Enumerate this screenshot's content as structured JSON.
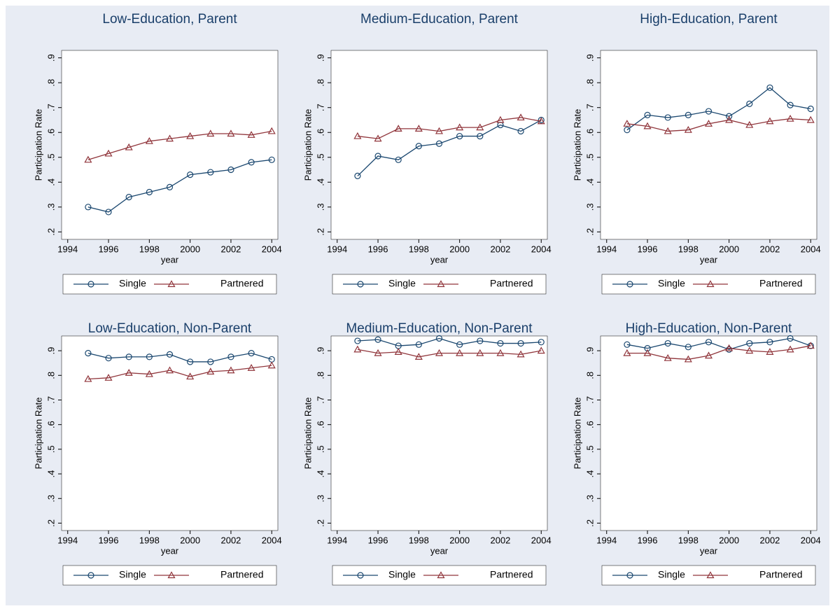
{
  "chart_data": [
    {
      "type": "line",
      "title": "Low-Education, Parent",
      "xlabel": "year",
      "ylabel": "Participation Rate",
      "x": [
        1995,
        1996,
        1997,
        1998,
        1999,
        2000,
        2001,
        2002,
        2003,
        2004
      ],
      "series": [
        {
          "name": "Single",
          "color": "#1a476f",
          "marker": "circle",
          "values": [
            0.3,
            0.28,
            0.34,
            0.36,
            0.38,
            0.43,
            0.44,
            0.45,
            0.48,
            0.49
          ]
        },
        {
          "name": "Partnered",
          "color": "#90353b",
          "marker": "triangle",
          "values": [
            0.49,
            0.515,
            0.54,
            0.565,
            0.575,
            0.585,
            0.595,
            0.595,
            0.59,
            0.605
          ]
        }
      ],
      "xlim": [
        1993.7,
        2004.3
      ],
      "xticks": [
        1994,
        1996,
        1998,
        2000,
        2002,
        2004
      ],
      "ylim": [
        0.17,
        0.93
      ],
      "yticks": [
        {
          "value": 0.2,
          "label": ".2"
        },
        {
          "value": 0.3,
          "label": ".3"
        },
        {
          "value": 0.4,
          "label": ".4"
        },
        {
          "value": 0.5,
          "label": ".5"
        },
        {
          "value": 0.6,
          "label": ".6"
        },
        {
          "value": 0.7,
          "label": ".7"
        },
        {
          "value": 0.8,
          "label": ".8"
        },
        {
          "value": 0.9,
          "label": ".9"
        }
      ]
    },
    {
      "type": "line",
      "title": "Medium-Education, Parent",
      "xlabel": "year",
      "ylabel": "Participation Rate",
      "x": [
        1995,
        1996,
        1997,
        1998,
        1999,
        2000,
        2001,
        2002,
        2003,
        2004
      ],
      "series": [
        {
          "name": "Single",
          "color": "#1a476f",
          "marker": "circle",
          "values": [
            0.425,
            0.505,
            0.49,
            0.545,
            0.555,
            0.585,
            0.585,
            0.63,
            0.605,
            0.65
          ]
        },
        {
          "name": "Partnered",
          "color": "#90353b",
          "marker": "triangle",
          "values": [
            0.585,
            0.575,
            0.615,
            0.615,
            0.605,
            0.62,
            0.62,
            0.65,
            0.66,
            0.645
          ]
        }
      ],
      "xlim": [
        1993.7,
        2004.3
      ],
      "xticks": [
        1994,
        1996,
        1998,
        2000,
        2002,
        2004
      ],
      "ylim": [
        0.17,
        0.93
      ],
      "yticks": [
        {
          "value": 0.2,
          "label": ".2"
        },
        {
          "value": 0.3,
          "label": ".3"
        },
        {
          "value": 0.4,
          "label": ".4"
        },
        {
          "value": 0.5,
          "label": ".5"
        },
        {
          "value": 0.6,
          "label": ".6"
        },
        {
          "value": 0.7,
          "label": ".7"
        },
        {
          "value": 0.8,
          "label": ".8"
        },
        {
          "value": 0.9,
          "label": ".9"
        }
      ]
    },
    {
      "type": "line",
      "title": "High-Education, Parent",
      "xlabel": "year",
      "ylabel": "Participation Rate",
      "x": [
        1995,
        1996,
        1997,
        1998,
        1999,
        2000,
        2001,
        2002,
        2003,
        2004
      ],
      "series": [
        {
          "name": "Single",
          "color": "#1a476f",
          "marker": "circle",
          "values": [
            0.61,
            0.67,
            0.66,
            0.67,
            0.685,
            0.665,
            0.715,
            0.78,
            0.71,
            0.695
          ]
        },
        {
          "name": "Partnered",
          "color": "#90353b",
          "marker": "triangle",
          "values": [
            0.635,
            0.625,
            0.605,
            0.61,
            0.635,
            0.65,
            0.63,
            0.645,
            0.655,
            0.65
          ]
        }
      ],
      "xlim": [
        1993.7,
        2004.3
      ],
      "xticks": [
        1994,
        1996,
        1998,
        2000,
        2002,
        2004
      ],
      "ylim": [
        0.17,
        0.93
      ],
      "yticks": [
        {
          "value": 0.2,
          "label": ".2"
        },
        {
          "value": 0.3,
          "label": ".3"
        },
        {
          "value": 0.4,
          "label": ".4"
        },
        {
          "value": 0.5,
          "label": ".5"
        },
        {
          "value": 0.6,
          "label": ".6"
        },
        {
          "value": 0.7,
          "label": ".7"
        },
        {
          "value": 0.8,
          "label": ".8"
        },
        {
          "value": 0.9,
          "label": ".9"
        }
      ]
    },
    {
      "type": "line",
      "title": "Low-Education, Non-Parent",
      "xlabel": "year",
      "ylabel": "Participation Rate",
      "x": [
        1995,
        1996,
        1997,
        1998,
        1999,
        2000,
        2001,
        2002,
        2003,
        2004
      ],
      "series": [
        {
          "name": "Single",
          "color": "#1a476f",
          "marker": "circle",
          "values": [
            0.89,
            0.87,
            0.875,
            0.875,
            0.885,
            0.855,
            0.855,
            0.875,
            0.89,
            0.865
          ]
        },
        {
          "name": "Partnered",
          "color": "#90353b",
          "marker": "triangle",
          "values": [
            0.785,
            0.79,
            0.81,
            0.805,
            0.82,
            0.795,
            0.815,
            0.82,
            0.83,
            0.84
          ]
        }
      ],
      "xlim": [
        1993.7,
        2004.3
      ],
      "xticks": [
        1994,
        1996,
        1998,
        2000,
        2002,
        2004
      ],
      "ylim": [
        0.17,
        0.96
      ],
      "yticks": [
        {
          "value": 0.2,
          "label": ".2"
        },
        {
          "value": 0.3,
          "label": ".3"
        },
        {
          "value": 0.4,
          "label": ".4"
        },
        {
          "value": 0.5,
          "label": ".5"
        },
        {
          "value": 0.6,
          "label": ".6"
        },
        {
          "value": 0.7,
          "label": ".7"
        },
        {
          "value": 0.8,
          "label": ".8"
        },
        {
          "value": 0.9,
          "label": ".9"
        }
      ]
    },
    {
      "type": "line",
      "title": "Medium-Education, Non-Parent",
      "xlabel": "year",
      "ylabel": "Participation Rate",
      "x": [
        1995,
        1996,
        1997,
        1998,
        1999,
        2000,
        2001,
        2002,
        2003,
        2004
      ],
      "series": [
        {
          "name": "Single",
          "color": "#1a476f",
          "marker": "circle",
          "values": [
            0.94,
            0.945,
            0.92,
            0.925,
            0.95,
            0.925,
            0.94,
            0.93,
            0.93,
            0.935
          ]
        },
        {
          "name": "Partnered",
          "color": "#90353b",
          "marker": "triangle",
          "values": [
            0.905,
            0.89,
            0.895,
            0.875,
            0.89,
            0.89,
            0.89,
            0.89,
            0.885,
            0.9
          ]
        }
      ],
      "xlim": [
        1993.7,
        2004.3
      ],
      "xticks": [
        1994,
        1996,
        1998,
        2000,
        2002,
        2004
      ],
      "ylim": [
        0.17,
        0.96
      ],
      "yticks": [
        {
          "value": 0.2,
          "label": ".2"
        },
        {
          "value": 0.3,
          "label": ".3"
        },
        {
          "value": 0.4,
          "label": ".4"
        },
        {
          "value": 0.5,
          "label": ".5"
        },
        {
          "value": 0.6,
          "label": ".6"
        },
        {
          "value": 0.7,
          "label": ".7"
        },
        {
          "value": 0.8,
          "label": ".8"
        },
        {
          "value": 0.9,
          "label": ".9"
        }
      ]
    },
    {
      "type": "line",
      "title": "High-Education, Non-Parent",
      "xlabel": "year",
      "ylabel": "Participation Rate",
      "x": [
        1995,
        1996,
        1997,
        1998,
        1999,
        2000,
        2001,
        2002,
        2003,
        2004
      ],
      "series": [
        {
          "name": "Single",
          "color": "#1a476f",
          "marker": "circle",
          "values": [
            0.925,
            0.91,
            0.93,
            0.915,
            0.935,
            0.905,
            0.93,
            0.935,
            0.95,
            0.92
          ]
        },
        {
          "name": "Partnered",
          "color": "#90353b",
          "marker": "triangle",
          "values": [
            0.89,
            0.89,
            0.87,
            0.865,
            0.88,
            0.91,
            0.9,
            0.895,
            0.905,
            0.92
          ]
        }
      ],
      "xlim": [
        1993.7,
        2004.3
      ],
      "xticks": [
        1994,
        1996,
        1998,
        2000,
        2002,
        2004
      ],
      "ylim": [
        0.17,
        0.96
      ],
      "yticks": [
        {
          "value": 0.2,
          "label": ".2"
        },
        {
          "value": 0.3,
          "label": ".3"
        },
        {
          "value": 0.4,
          "label": ".4"
        },
        {
          "value": 0.5,
          "label": ".5"
        },
        {
          "value": 0.6,
          "label": ".6"
        },
        {
          "value": 0.7,
          "label": ".7"
        },
        {
          "value": 0.8,
          "label": ".8"
        },
        {
          "value": 0.9,
          "label": ".9"
        }
      ]
    }
  ]
}
